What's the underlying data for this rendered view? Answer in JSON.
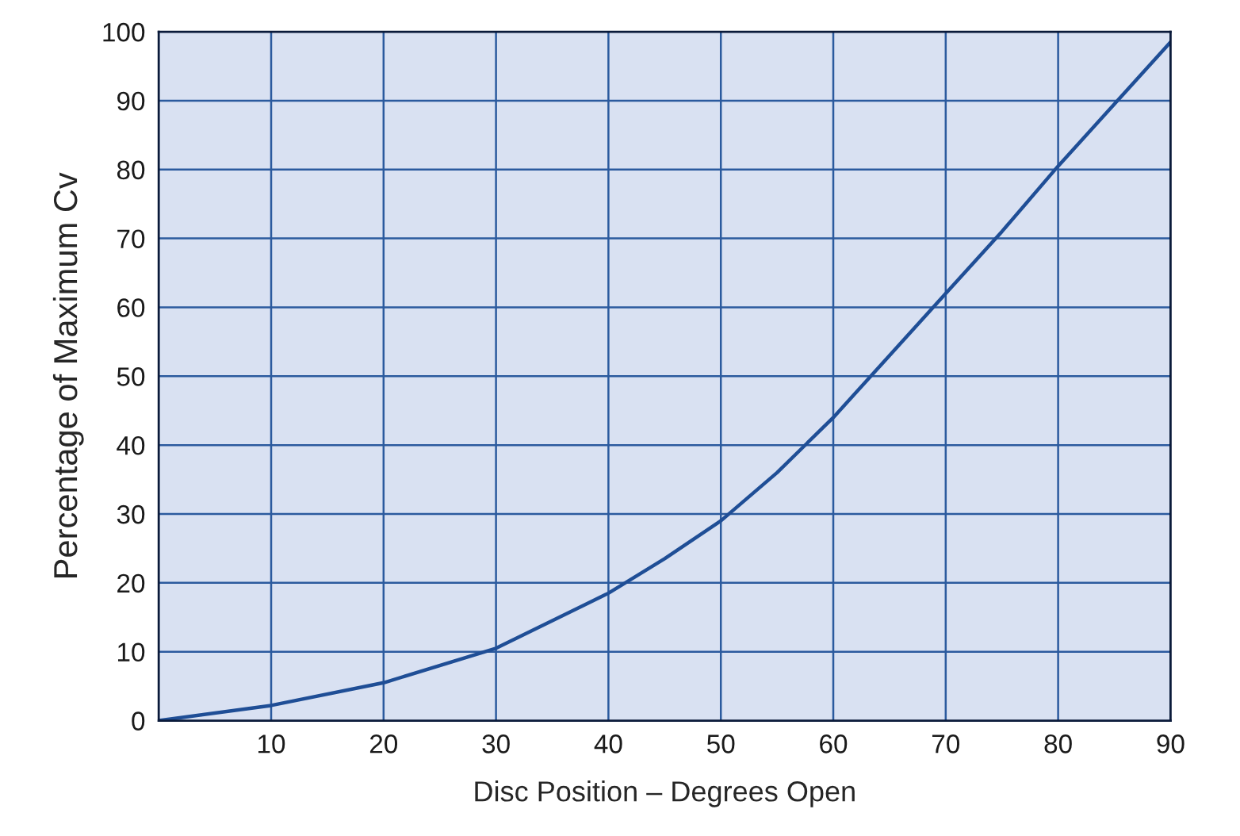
{
  "chart_data": {
    "type": "line",
    "xlabel": "Disc Position – Degrees Open",
    "ylabel": "Percentage of Maximum Cv",
    "x": [
      0,
      10,
      20,
      30,
      40,
      45,
      50,
      55,
      60,
      65,
      70,
      75,
      80,
      85,
      90
    ],
    "series": [
      {
        "color": "#1f4e96",
        "values": [
          0,
          2.2,
          5.5,
          10.5,
          18.5,
          23.5,
          29,
          36,
          44,
          53,
          62,
          71,
          80.5,
          89.5,
          98.5
        ]
      }
    ],
    "xlim": [
      0,
      90
    ],
    "ylim": [
      0,
      100
    ],
    "xticks": [
      10,
      20,
      30,
      40,
      50,
      60,
      70,
      80,
      90
    ],
    "yticks": [
      0,
      10,
      20,
      30,
      40,
      50,
      60,
      70,
      80,
      90,
      100
    ],
    "grid": true,
    "marker": "none",
    "line_style": "solid"
  }
}
